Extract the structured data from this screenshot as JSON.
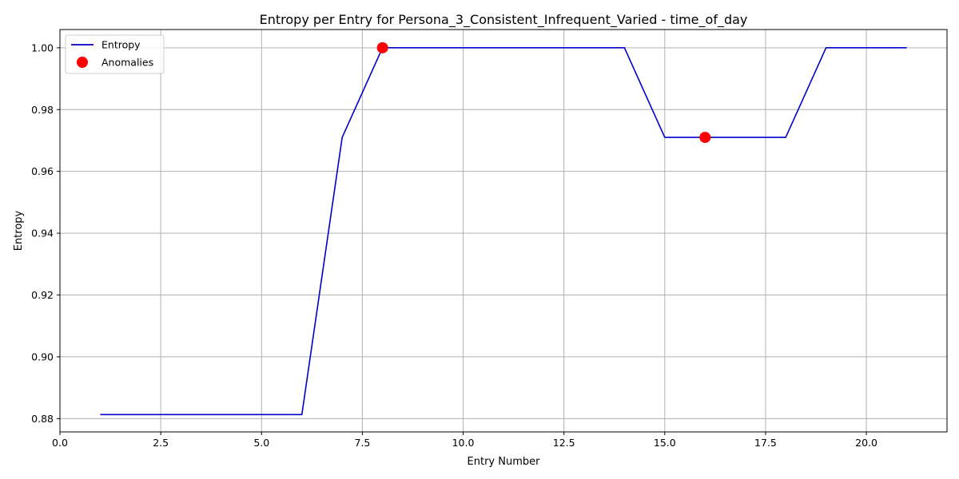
{
  "chart_data": {
    "type": "line",
    "title": "Entropy per Entry for Persona_3_Consistent_Infrequent_Varied - time_of_day",
    "xlabel": "Entry Number",
    "ylabel": "Entropy",
    "xlim": [
      0,
      22
    ],
    "ylim": [
      0.8757,
      1.0059
    ],
    "x_ticks": [
      0.0,
      2.5,
      5.0,
      7.5,
      10.0,
      12.5,
      15.0,
      17.5,
      20.0
    ],
    "x_tick_labels": [
      "0.0",
      "2.5",
      "5.0",
      "7.5",
      "10.0",
      "12.5",
      "15.0",
      "17.5",
      "20.0"
    ],
    "y_ticks": [
      0.88,
      0.9,
      0.92,
      0.94,
      0.96,
      0.98,
      1.0
    ],
    "y_tick_labels": [
      "0.88",
      "0.90",
      "0.92",
      "0.94",
      "0.96",
      "0.98",
      "1.00"
    ],
    "grid": true,
    "legend_position": "top-left",
    "series": [
      {
        "name": "Entropy",
        "kind": "line",
        "color": "#0000cc",
        "x": [
          1,
          2,
          3,
          4,
          5,
          6,
          7,
          8,
          9,
          10,
          11,
          12,
          13,
          14,
          15,
          16,
          17,
          18,
          19,
          20,
          21
        ],
        "y": [
          0.8813,
          0.8813,
          0.8813,
          0.8813,
          0.8813,
          0.8813,
          0.971,
          1.0,
          1.0,
          1.0,
          1.0,
          1.0,
          1.0,
          1.0,
          0.971,
          0.971,
          0.971,
          0.971,
          1.0,
          1.0,
          1.0
        ]
      },
      {
        "name": "Anomalies",
        "kind": "scatter",
        "color": "#ff0000",
        "x": [
          8,
          16
        ],
        "y": [
          1.0,
          0.971
        ]
      }
    ]
  }
}
